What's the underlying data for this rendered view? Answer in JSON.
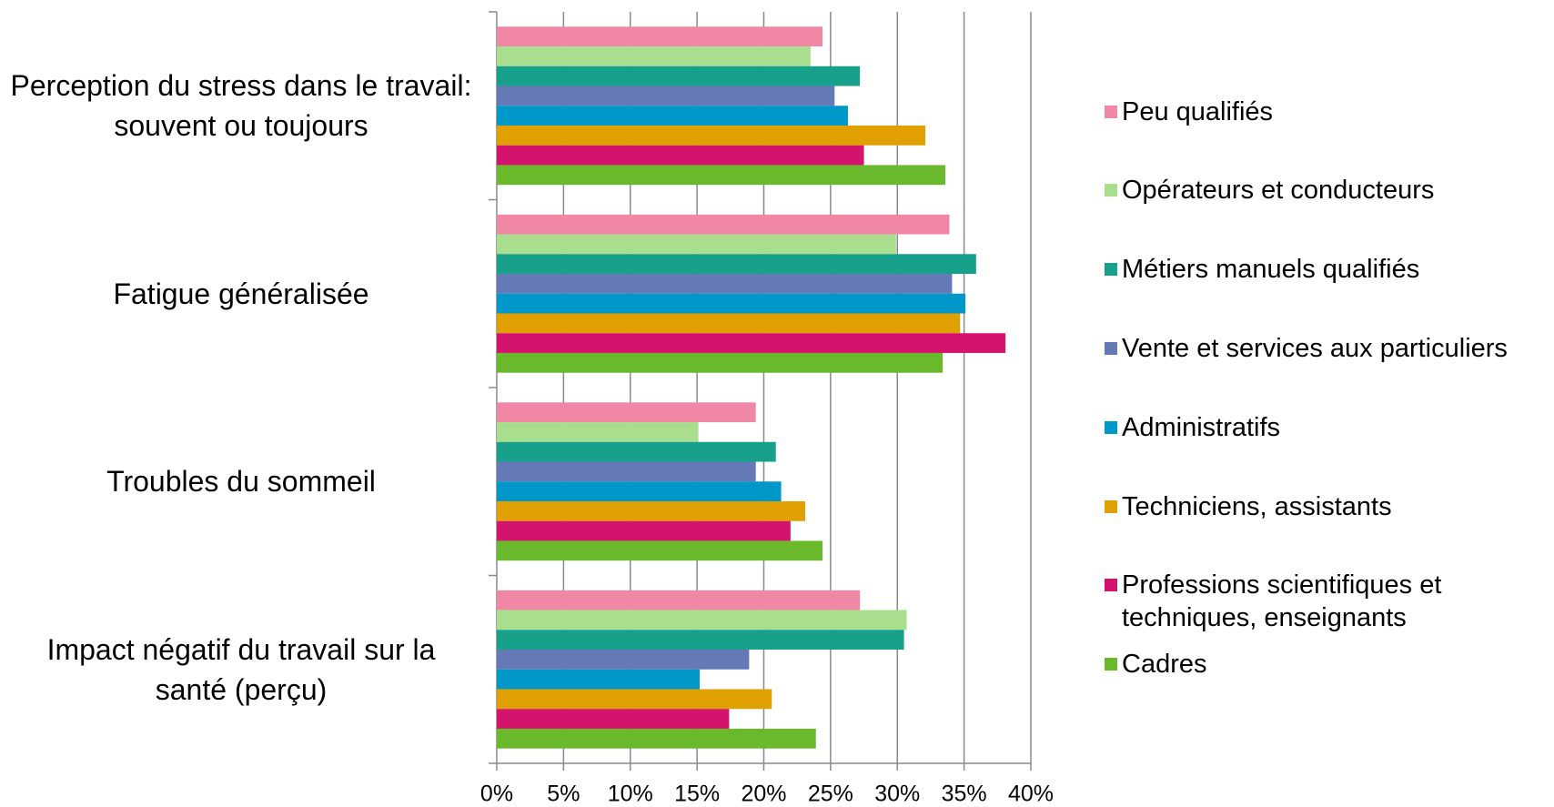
{
  "chart_data": {
    "type": "bar",
    "orientation": "horizontal",
    "categories": [
      "Perception du stress dans le travail: souvent ou toujours",
      "Fatigue généralisée",
      "Troubles du sommeil",
      "Impact négatif du travail sur la santé (perçu)"
    ],
    "series": [
      {
        "name": "Peu qualifiés",
        "color": "#f087a5",
        "values": [
          24.4,
          33.9,
          19.4,
          27.2
        ]
      },
      {
        "name": "Opérateurs et conducteurs",
        "color": "#a8de8e",
        "values": [
          23.5,
          29.9,
          15.1,
          30.7
        ]
      },
      {
        "name": "Métiers manuels qualifiés",
        "color": "#17a08a",
        "values": [
          27.2,
          35.9,
          20.9,
          30.5
        ]
      },
      {
        "name": "Vente et services aux particuliers",
        "color": "#6479b5",
        "values": [
          25.3,
          34.1,
          19.4,
          18.9
        ]
      },
      {
        "name": "Administratifs",
        "color": "#0098c8",
        "values": [
          26.3,
          35.1,
          21.3,
          15.2
        ]
      },
      {
        "name": "Techniciens, assistants",
        "color": "#e0a000",
        "values": [
          32.1,
          34.7,
          23.1,
          20.6
        ]
      },
      {
        "name": "Professions scientifiques et techniques, enseignants",
        "color": "#d4146c",
        "values": [
          27.5,
          38.1,
          22.0,
          17.4
        ]
      },
      {
        "name": "Cadres",
        "color": "#6ab82c",
        "values": [
          33.6,
          33.4,
          24.4,
          23.9
        ]
      }
    ],
    "xlim": [
      0,
      40
    ],
    "xticks": [
      {
        "value": 0,
        "label": "0%"
      },
      {
        "value": 5,
        "label": "5%"
      },
      {
        "value": 10,
        "label": "10%"
      },
      {
        "value": 15,
        "label": "15%"
      },
      {
        "value": 20,
        "label": "20%"
      },
      {
        "value": 25,
        "label": "25%"
      },
      {
        "value": 30,
        "label": "30%"
      },
      {
        "value": 35,
        "label": "35%"
      },
      {
        "value": 40,
        "label": "40%"
      }
    ],
    "grid": true,
    "legend": "right"
  }
}
